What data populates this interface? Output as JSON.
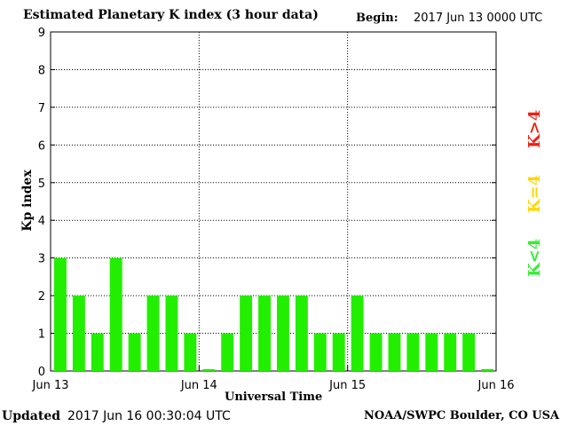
{
  "header": {
    "title": "Estimated Planetary K index (3 hour data)",
    "begin_label": "Begin:",
    "begin_value": "2017 Jun 13 0000 UTC"
  },
  "footer": {
    "updated_label": "Updated",
    "updated_value": "2017 Jun 16 00:30:04 UTC",
    "credit": "NOAA/SWPC Boulder, CO USA"
  },
  "legend": {
    "low": {
      "label": "K<4",
      "color": "#33ee33"
    },
    "mid": {
      "label": "K=4",
      "color": "#ffd700"
    },
    "high": {
      "label": "K>4",
      "color": "#ee2211"
    }
  },
  "chart_data": {
    "type": "bar",
    "title": "Estimated Planetary K index (3 hour data)",
    "xlabel": "Universal Time",
    "ylabel": "Kp index",
    "ylim": [
      0,
      9
    ],
    "yticks": [
      "0",
      "1",
      "2",
      "3",
      "4",
      "5",
      "6",
      "7",
      "8",
      "9"
    ],
    "xticks": [
      "Jun 13",
      "Jun 14",
      "Jun 15",
      "Jun 16"
    ],
    "grid": "dotted at each day and each Kp level",
    "bar_color": "#22ee00",
    "values": [
      3,
      2,
      1,
      3,
      1,
      2,
      2,
      1,
      0.05,
      1,
      2,
      2,
      2,
      2,
      1,
      1,
      2,
      1,
      1,
      1,
      1,
      1,
      1,
      0.05
    ]
  }
}
